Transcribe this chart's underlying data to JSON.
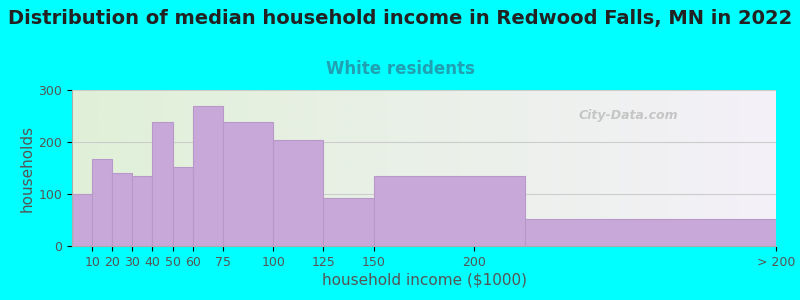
{
  "title": "Distribution of median household income in Redwood Falls, MN in 2022",
  "subtitle": "White residents",
  "xlabel": "household income ($1000)",
  "ylabel": "households",
  "bin_edges": [
    0,
    10,
    20,
    30,
    40,
    50,
    60,
    75,
    100,
    125,
    150,
    225,
    350
  ],
  "bar_values": [
    100,
    168,
    140,
    135,
    238,
    152,
    270,
    238,
    203,
    92,
    135,
    52
  ],
  "tick_positions": [
    10,
    20,
    30,
    40,
    50,
    60,
    75,
    100,
    125,
    150,
    200,
    350
  ],
  "tick_labels": [
    "10",
    "20",
    "30",
    "40",
    "50",
    "60",
    "75",
    "100",
    "125",
    "150",
    "200",
    "> 200"
  ],
  "bar_color": "#c8a8d8",
  "bar_edge_color": "#b898c8",
  "plot_bg_left": "#e0f0d8",
  "plot_bg_right": "#f4f0f8",
  "fig_bg": "#00ffff",
  "ylim": [
    0,
    300
  ],
  "yticks": [
    0,
    100,
    200,
    300
  ],
  "watermark": "City-Data.com",
  "title_fontsize": 14,
  "subtitle_fontsize": 12,
  "subtitle_color": "#20a0b0",
  "axis_label_fontsize": 11,
  "tick_fontsize": 9,
  "title_color": "#222222"
}
